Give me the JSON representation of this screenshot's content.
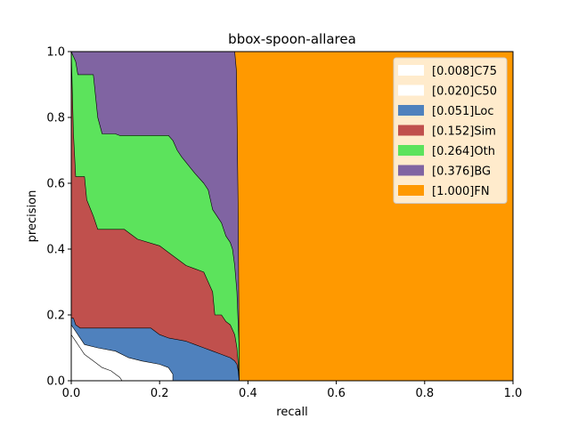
{
  "chart_data": {
    "type": "area",
    "title": "bbox-spoon-allarea",
    "xlabel": "recall",
    "ylabel": "precision",
    "xlim": [
      0,
      1
    ],
    "ylim": [
      0,
      1
    ],
    "xticks": [
      "0.0",
      "0.2",
      "0.4",
      "0.6",
      "0.8",
      "1.0"
    ],
    "yticks": [
      "0.0",
      "0.2",
      "0.4",
      "0.6",
      "0.8",
      "1.0"
    ],
    "legend_position": "top-right",
    "grid": false,
    "series": [
      {
        "name": "[1.000]FN",
        "color": "#ff9900",
        "points": [
          [
            0,
            1
          ],
          [
            1,
            1
          ],
          [
            1,
            0
          ],
          [
            0,
            0
          ]
        ]
      },
      {
        "name": "[0.376]BG",
        "color": "#8064a2",
        "points": [
          [
            0,
            1
          ],
          [
            0.37,
            1
          ],
          [
            0.374,
            0.94
          ],
          [
            0.378,
            0.5
          ],
          [
            0.38,
            0.1
          ],
          [
            0.38,
            0
          ],
          [
            0,
            0
          ]
        ]
      },
      {
        "name": "[0.264]Oth",
        "color": "#5ce35c",
        "points": [
          [
            0,
            1
          ],
          [
            0.01,
            0.97
          ],
          [
            0.015,
            0.93
          ],
          [
            0.05,
            0.93
          ],
          [
            0.06,
            0.8
          ],
          [
            0.07,
            0.75
          ],
          [
            0.1,
            0.75
          ],
          [
            0.11,
            0.745
          ],
          [
            0.12,
            0.745
          ],
          [
            0.22,
            0.745
          ],
          [
            0.23,
            0.73
          ],
          [
            0.24,
            0.7
          ],
          [
            0.25,
            0.68
          ],
          [
            0.28,
            0.63
          ],
          [
            0.3,
            0.6
          ],
          [
            0.31,
            0.58
          ],
          [
            0.32,
            0.52
          ],
          [
            0.34,
            0.48
          ],
          [
            0.35,
            0.44
          ],
          [
            0.36,
            0.42
          ],
          [
            0.365,
            0.4
          ],
          [
            0.37,
            0.35
          ],
          [
            0.375,
            0.27
          ],
          [
            0.38,
            0.1
          ],
          [
            0.38,
            0
          ],
          [
            0,
            0
          ]
        ]
      },
      {
        "name": "[0.152]Sim",
        "color": "#c0504d",
        "points": [
          [
            0,
            1
          ],
          [
            0.005,
            0.75
          ],
          [
            0.01,
            0.62
          ],
          [
            0.03,
            0.62
          ],
          [
            0.035,
            0.55
          ],
          [
            0.05,
            0.5
          ],
          [
            0.06,
            0.46
          ],
          [
            0.12,
            0.46
          ],
          [
            0.13,
            0.45
          ],
          [
            0.15,
            0.43
          ],
          [
            0.2,
            0.41
          ],
          [
            0.22,
            0.39
          ],
          [
            0.24,
            0.37
          ],
          [
            0.26,
            0.35
          ],
          [
            0.28,
            0.34
          ],
          [
            0.3,
            0.33
          ],
          [
            0.31,
            0.3
          ],
          [
            0.32,
            0.27
          ],
          [
            0.325,
            0.2
          ],
          [
            0.34,
            0.2
          ],
          [
            0.35,
            0.18
          ],
          [
            0.36,
            0.17
          ],
          [
            0.37,
            0.14
          ],
          [
            0.375,
            0.1
          ],
          [
            0.378,
            0.05
          ],
          [
            0.38,
            0
          ],
          [
            0,
            0
          ]
        ]
      },
      {
        "name": "[0.051]Loc",
        "color": "#4f81bd",
        "points": [
          [
            0,
            0.19
          ],
          [
            0.005,
            0.19
          ],
          [
            0.01,
            0.17
          ],
          [
            0.02,
            0.16
          ],
          [
            0.18,
            0.16
          ],
          [
            0.2,
            0.14
          ],
          [
            0.22,
            0.13
          ],
          [
            0.26,
            0.12
          ],
          [
            0.28,
            0.11
          ],
          [
            0.3,
            0.1
          ],
          [
            0.32,
            0.09
          ],
          [
            0.34,
            0.08
          ],
          [
            0.36,
            0.07
          ],
          [
            0.37,
            0.06
          ],
          [
            0.375,
            0.05
          ],
          [
            0.378,
            0.03
          ],
          [
            0.38,
            0
          ],
          [
            0,
            0
          ]
        ]
      },
      {
        "name": "[0.020]C50",
        "color": "#ffffff",
        "points": [
          [
            0,
            0.17
          ],
          [
            0.01,
            0.15
          ],
          [
            0.02,
            0.13
          ],
          [
            0.03,
            0.11
          ],
          [
            0.06,
            0.1
          ],
          [
            0.1,
            0.09
          ],
          [
            0.13,
            0.07
          ],
          [
            0.16,
            0.06
          ],
          [
            0.2,
            0.05
          ],
          [
            0.22,
            0.04
          ],
          [
            0.23,
            0.02
          ],
          [
            0.23,
            0
          ],
          [
            0,
            0
          ]
        ]
      },
      {
        "name": "[0.008]C75",
        "color": "#ffffff",
        "points": [
          [
            0,
            0.14
          ],
          [
            0.01,
            0.12
          ],
          [
            0.02,
            0.1
          ],
          [
            0.03,
            0.08
          ],
          [
            0.05,
            0.06
          ],
          [
            0.07,
            0.04
          ],
          [
            0.09,
            0.03
          ],
          [
            0.1,
            0.02
          ],
          [
            0.11,
            0.01
          ],
          [
            0.115,
            0
          ],
          [
            0,
            0
          ]
        ]
      }
    ],
    "legend": [
      {
        "label": "[0.008]C75",
        "color": "#ffffff"
      },
      {
        "label": "[0.020]C50",
        "color": "#ffffff"
      },
      {
        "label": "[0.051]Loc",
        "color": "#4f81bd"
      },
      {
        "label": "[0.152]Sim",
        "color": "#c0504d"
      },
      {
        "label": "[0.264]Oth",
        "color": "#5ce35c"
      },
      {
        "label": "[0.376]BG",
        "color": "#8064a2"
      },
      {
        "label": "[1.000]FN",
        "color": "#ff9900"
      }
    ]
  }
}
